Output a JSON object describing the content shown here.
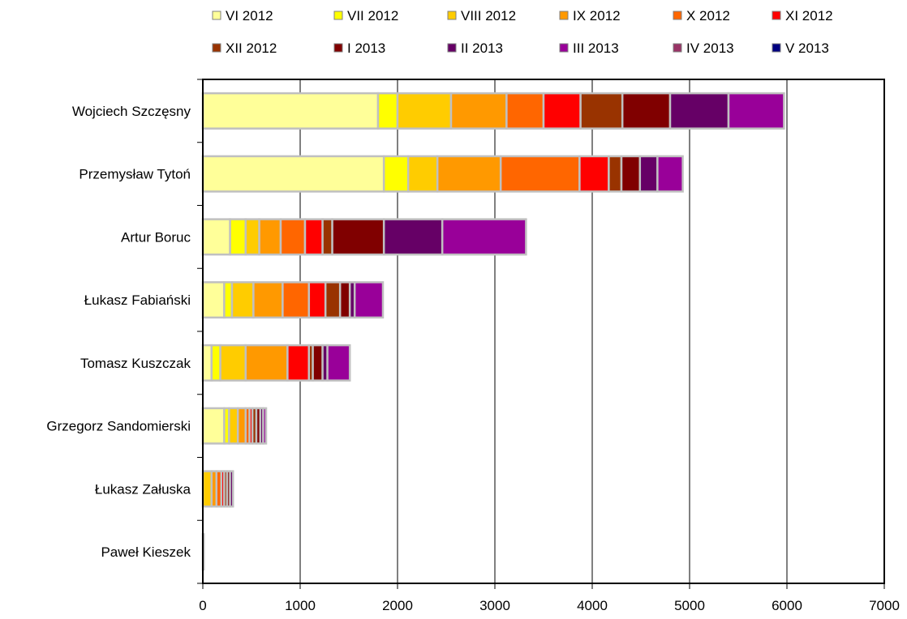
{
  "chart_data": {
    "type": "bar",
    "orientation": "horizontal",
    "stacked": true,
    "categories": [
      "Wojciech Szczęsny",
      "Przemysław Tytoń",
      "Artur Boruc",
      "Łukasz Fabiański",
      "Tomasz Kuszczak",
      "Grzegorz Sandomierski",
      "Łukasz Załuska",
      "Paweł Kieszek"
    ],
    "series": [
      {
        "name": "VI 2012",
        "color": "#FFFF99",
        "values": [
          1800,
          1860,
          280,
          220,
          90,
          220,
          0,
          0
        ]
      },
      {
        "name": "VII 2012",
        "color": "#FFFF00",
        "values": [
          200,
          250,
          160,
          80,
          90,
          50,
          0,
          0
        ]
      },
      {
        "name": "VIII 2012",
        "color": "#FFCC00",
        "values": [
          550,
          300,
          140,
          220,
          260,
          90,
          90,
          5
        ]
      },
      {
        "name": "IX 2012",
        "color": "#FF9900",
        "values": [
          570,
          650,
          220,
          300,
          430,
          80,
          50,
          5
        ]
      },
      {
        "name": "X 2012",
        "color": "#FF6600",
        "values": [
          380,
          810,
          250,
          270,
          0,
          40,
          50,
          0
        ]
      },
      {
        "name": "XI 2012",
        "color": "#FF0000",
        "values": [
          380,
          300,
          180,
          170,
          220,
          30,
          30,
          0
        ]
      },
      {
        "name": "XII 2012",
        "color": "#993300",
        "values": [
          430,
          130,
          100,
          150,
          40,
          40,
          30,
          0
        ]
      },
      {
        "name": "I 2013",
        "color": "#800000",
        "values": [
          490,
          190,
          530,
          100,
          100,
          40,
          30,
          0
        ]
      },
      {
        "name": "II 2013",
        "color": "#660066",
        "values": [
          600,
          180,
          600,
          50,
          50,
          30,
          30,
          0
        ]
      },
      {
        "name": "III 2013",
        "color": "#990099",
        "values": [
          570,
          260,
          860,
          290,
          230,
          30,
          0,
          0
        ]
      },
      {
        "name": "IV 2013",
        "color": "#993366",
        "values": [
          0,
          0,
          0,
          0,
          0,
          0,
          0,
          0
        ]
      },
      {
        "name": "V 2013",
        "color": "#000080",
        "values": [
          0,
          0,
          0,
          0,
          0,
          0,
          0,
          0
        ]
      }
    ],
    "xlim": [
      0,
      7000
    ],
    "xticks": [
      0,
      1000,
      2000,
      3000,
      4000,
      5000,
      6000,
      7000
    ],
    "grid": true,
    "legend_position": "top",
    "title": "",
    "xlabel": "",
    "ylabel": ""
  }
}
